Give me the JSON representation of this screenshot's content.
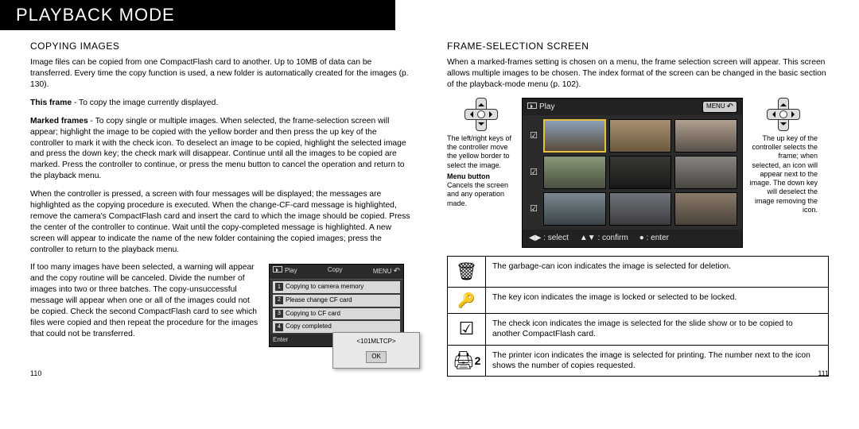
{
  "header": {
    "title": "PLAYBACK MODE"
  },
  "left": {
    "subhead": "COPYING IMAGES",
    "p1": "Image files can be copied from one CompactFlash card to another. Up to 10MB of data can be transferred. Every time the copy function is used, a new folder is automatically created for the images (p. 130).",
    "p2_label": "This frame",
    "p2_rest": " - To copy the image currently displayed.",
    "p3_label": "Marked frames",
    "p3_rest": " - To copy single or multiple images. When selected, the frame-selection screen will appear; highlight the image to be copied with the yellow border and then press the up key of the controller to mark it with the check icon. To deselect an image to be copied, highlight the selected image and press the down key; the check mark will disappear. Continue until all the images to be copied are marked. Press the controller to continue, or press the menu button to cancel the operation and return to the playback menu.",
    "p4": "When the controller is pressed, a screen with four messages will be displayed; the messages are highlighted as the copying procedure is executed. When the change-CF-card message is highlighted, remove the camera's CompactFlash card and insert the card to which the image should be copied. Press the center of the controller to continue. Wait until the copy-completed message is highlighted. A new screen will appear to indicate the name of the new folder containing the copied images; press the controller to return to the playback menu.",
    "p5": "If too many images have been selected, a warning will appear and the copy routine will be canceled. Divide the number of images into two or three batches. The copy-unsuccessful message will appear when one or all of the images could not be copied. Check the second CompactFlash card to see which files were copied and then repeat the procedure for the images that could not be transferred.",
    "lcd1": {
      "top_play": "Play",
      "top_copy": "Copy",
      "top_menu": "MENU",
      "r1": "Copying to camera memory",
      "r2": "Please change CF card",
      "r3": "Copying to CF card",
      "r4": "Copy completed",
      "enter": "Enter"
    },
    "lcd2": {
      "folder": "<101MLTCP>",
      "ok": "OK"
    },
    "pagenum": "110"
  },
  "right": {
    "subhead": "FRAME-SELECTION SCREEN",
    "intro": "When a marked-frames setting is chosen on a menu, the frame selection screen will appear. This screen allows multiple images to be chosen. The index format of the screen can be changed in the basic section of the playback-mode menu (p. 102).",
    "note_left": "The left/right keys of the controller move the yellow border to select the image.",
    "menu_head": "Menu button",
    "note_menu": "Cancels the screen and any operation made.",
    "note_right": "The up key of the controller selects the frame; when selected, an icon will appear next to the image. The down key will deselect the image removing the icon.",
    "lcd": {
      "top_play": "Play",
      "top_menu": "MENU",
      "bot_select": ": select",
      "bot_confirm": ": confirm",
      "bot_enter": ": enter"
    },
    "table": {
      "r1": "The garbage-can icon indicates the image is selected for deletion.",
      "r2": "The key icon indicates the image is locked or selected to be locked.",
      "r3": "The check icon indicates the image is selected for the slide show or to be copied to another CompactFlash card.",
      "r4": "The printer icon indicates the image is selected for printing. The number next to the icon shows the number of copies requested."
    },
    "icons": {
      "trash": "🗑",
      "key": "🔑",
      "check": "☑",
      "printer": "🖨",
      "printer_n": "2"
    },
    "pagenum": "111"
  }
}
